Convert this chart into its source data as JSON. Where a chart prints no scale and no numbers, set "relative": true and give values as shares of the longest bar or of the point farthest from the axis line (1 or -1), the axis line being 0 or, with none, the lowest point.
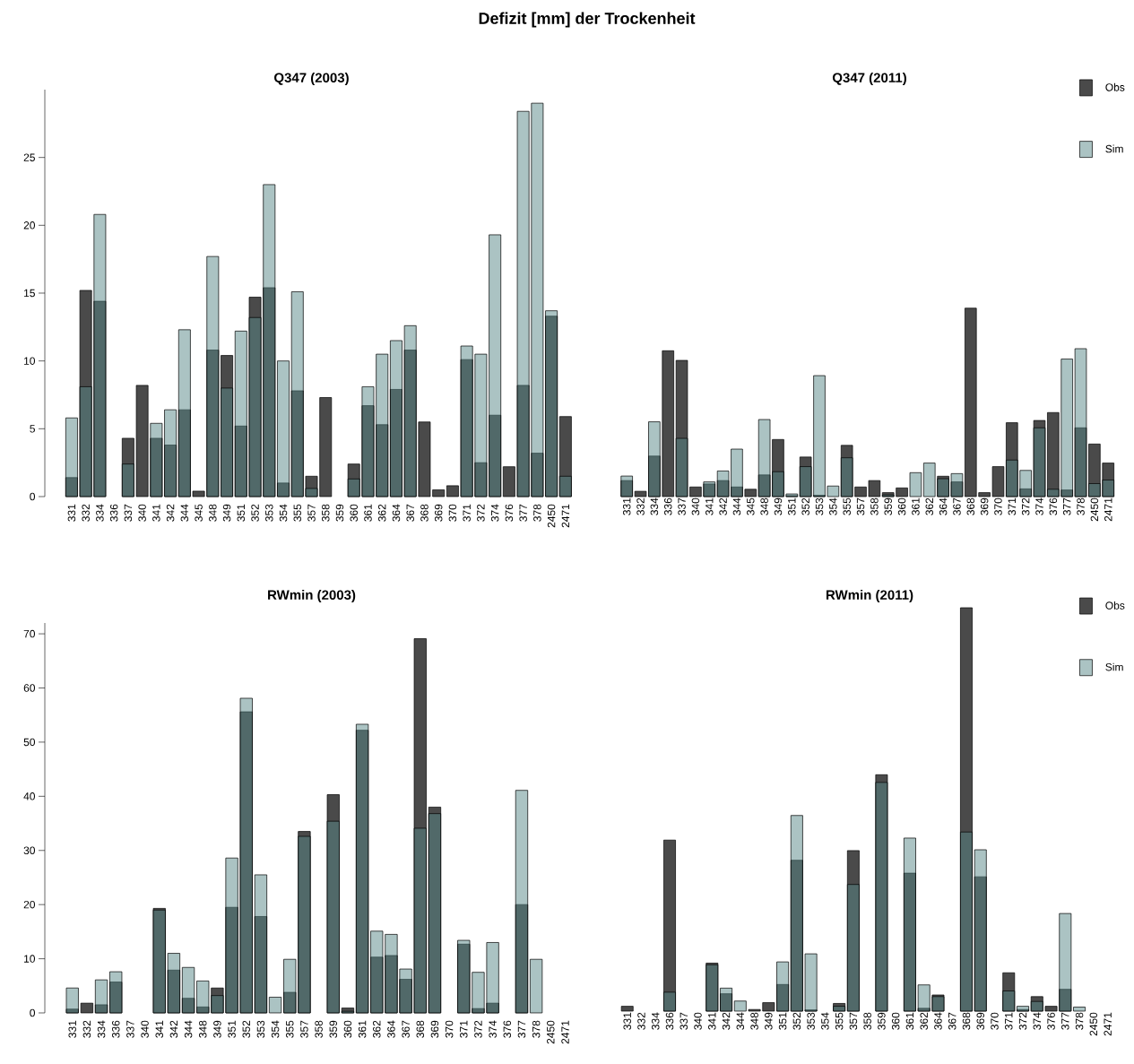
{
  "chart_data": [
    {
      "type": "bar",
      "title": "Q347 (2003)",
      "annotations": [
        "Defizit [mm] der Trockenheit"
      ],
      "categories": [
        "331",
        "332",
        "334",
        "336",
        "337",
        "340",
        "341",
        "342",
        "344",
        "345",
        "348",
        "349",
        "351",
        "352",
        "353",
        "354",
        "355",
        "357",
        "358",
        "359",
        "360",
        "361",
        "362",
        "364",
        "367",
        "368",
        "369",
        "370",
        "371",
        "372",
        "374",
        "376",
        "377",
        "378",
        "2450",
        "2471"
      ],
      "series": [
        {
          "color": "#4a4a4a",
          "values": [
            1.4,
            15.2,
            14.4,
            0,
            4.3,
            8.2,
            4.3,
            3.8,
            6.4,
            0.4,
            10.8,
            10.4,
            5.2,
            14.7,
            15.4,
            1.0,
            7.8,
            1.5,
            7.3,
            0,
            2.4,
            6.7,
            5.3,
            7.9,
            10.8,
            5.5,
            0.5,
            0.8,
            10.1,
            2.5,
            6.0,
            2.2,
            8.2,
            3.2,
            13.3,
            5.9
          ]
        },
        {
          "color": "#abc3c3",
          "values": [
            5.8,
            8.1,
            20.8,
            0,
            2.4,
            0,
            5.4,
            6.4,
            12.3,
            0,
            17.7,
            8.0,
            12.2,
            13.2,
            23.0,
            10.0,
            15.1,
            0.6,
            0,
            0,
            1.3,
            8.1,
            10.5,
            11.5,
            12.6,
            0,
            0,
            0,
            11.1,
            10.5,
            19.3,
            0,
            28.4,
            29.0,
            13.7,
            1.5
          ]
        }
      ],
      "ylim": [
        0,
        30
      ],
      "yticks": [
        0,
        5,
        10,
        15,
        20,
        25
      ]
    },
    {
      "type": "bar",
      "title": "Q347 (2011)",
      "relative": true,
      "tick_labels": "x",
      "legend": "top right",
      "categories": [
        "331",
        "332",
        "334",
        "336",
        "337",
        "340",
        "341",
        "342",
        "344",
        "345",
        "348",
        "349",
        "351",
        "352",
        "353",
        "354",
        "355",
        "357",
        "358",
        "359",
        "360",
        "361",
        "362",
        "364",
        "367",
        "368",
        "369",
        "370",
        "371",
        "372",
        "374",
        "376",
        "377",
        "378",
        "2450",
        "2471"
      ],
      "series": [
        {
          "name": "Obs",
          "color": "#4a4a4a",
          "values": [
            0.085,
            0.028,
            0.215,
            0.774,
            0.723,
            0.051,
            0.067,
            0.085,
            0.051,
            0.039,
            0.115,
            0.303,
            0.005,
            0.21,
            0.007,
            0,
            0.272,
            0.051,
            0.085,
            0.021,
            0.046,
            0,
            0,
            0.108,
            0.078,
            1,
            0.021,
            0.159,
            0.392,
            0.041,
            0.404,
            0.446,
            0.035,
            0.365,
            0.279,
            0.178
          ]
        },
        {
          "name": "Sim",
          "color": "#abc3c3",
          "values": [
            0.109,
            0,
            0.397,
            0,
            0.309,
            0,
            0.078,
            0.136,
            0.252,
            0,
            0.409,
            0.132,
            0.014,
            0.159,
            0.642,
            0.056,
            0.206,
            0,
            0,
            0.009,
            0,
            0.127,
            0.178,
            0.095,
            0.122,
            0,
            0,
            0,
            0.194,
            0.139,
            0.365,
            0.039,
            0.73,
            0.785,
            0.069,
            0.088
          ]
        }
      ]
    },
    {
      "type": "bar",
      "title": "RWmin (2003)",
      "categories": [
        "331",
        "332",
        "334",
        "336",
        "337",
        "340",
        "341",
        "342",
        "344",
        "348",
        "349",
        "351",
        "352",
        "353",
        "354",
        "355",
        "357",
        "358",
        "359",
        "360",
        "361",
        "362",
        "364",
        "367",
        "368",
        "369",
        "370",
        "371",
        "372",
        "374",
        "376",
        "377",
        "378",
        "2450",
        "2471"
      ],
      "series": [
        {
          "color": "#4a4a4a",
          "values": [
            0.7,
            1.8,
            1.5,
            5.7,
            0,
            0,
            19.3,
            7.9,
            2.7,
            1.1,
            4.6,
            19.5,
            55.6,
            17.8,
            0,
            3.8,
            33.5,
            0,
            40.3,
            0.9,
            52.2,
            10.3,
            10.6,
            6.2,
            69.1,
            38.0,
            0,
            12.7,
            0.8,
            1.8,
            0,
            20.0,
            0,
            0,
            0
          ]
        },
        {
          "color": "#abc3c3",
          "values": [
            4.6,
            0,
            6.1,
            7.6,
            0,
            0,
            19.0,
            11.0,
            8.4,
            5.9,
            3.2,
            28.6,
            58.1,
            25.5,
            2.9,
            9.9,
            32.6,
            0,
            35.4,
            0.3,
            53.3,
            15.1,
            14.5,
            8.1,
            34.1,
            36.8,
            0,
            13.4,
            7.5,
            13.0,
            0,
            41.1,
            9.9,
            0,
            0
          ]
        }
      ],
      "ylim": [
        0,
        72
      ],
      "yticks": [
        0,
        10,
        20,
        30,
        40,
        50,
        60,
        70
      ]
    },
    {
      "type": "bar",
      "title": "RWmin (2011)",
      "relative": true,
      "tick_labels": "x",
      "legend": "top right",
      "categories": [
        "331",
        "332",
        "334",
        "336",
        "337",
        "340",
        "341",
        "342",
        "344",
        "348",
        "349",
        "351",
        "352",
        "353",
        "354",
        "355",
        "357",
        "358",
        "359",
        "360",
        "361",
        "362",
        "364",
        "367",
        "368",
        "369",
        "370",
        "371",
        "372",
        "374",
        "376",
        "377",
        "378",
        "2450",
        "2471"
      ],
      "series": [
        {
          "name": "Obs",
          "color": "#4a4a4a",
          "values": [
            0.012,
            0,
            0,
            0.424,
            0,
            0,
            0.119,
            0.043,
            0,
            0.004,
            0.021,
            0.066,
            0.374,
            0.003,
            0,
            0.019,
            0.398,
            0,
            0.586,
            0,
            0.342,
            0.007,
            0.04,
            0,
            1,
            0.333,
            0,
            0.095,
            0.004,
            0.036,
            0.012,
            0.054,
            0,
            0,
            0
          ]
        },
        {
          "name": "Sim",
          "color": "#abc3c3",
          "values": [
            0,
            0,
            0,
            0.047,
            0,
            0,
            0.115,
            0.057,
            0.025,
            0,
            0,
            0.122,
            0.485,
            0.142,
            0,
            0.012,
            0.314,
            0,
            0.567,
            0,
            0.429,
            0.065,
            0.036,
            0,
            0.444,
            0.4,
            0,
            0.05,
            0.012,
            0.024,
            0,
            0.242,
            0.01,
            0,
            0
          ]
        }
      ]
    }
  ]
}
